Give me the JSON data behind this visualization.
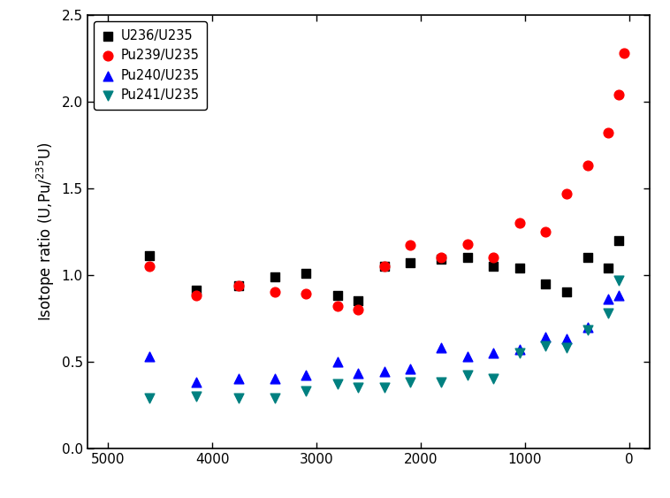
{
  "ylabel": "Isotope ratio (U,Pu/$^{235}$U)",
  "xlim": [
    5200,
    -200
  ],
  "ylim": [
    0.0,
    2.5
  ],
  "xticks": [
    5000,
    4000,
    3000,
    2000,
    1000,
    0
  ],
  "yticks": [
    0.0,
    0.5,
    1.0,
    1.5,
    2.0,
    2.5
  ],
  "U236_x": [
    4600,
    4150,
    3750,
    3400,
    3100,
    2800,
    2600,
    2350,
    2100,
    1800,
    1550,
    1300,
    1050,
    800,
    600,
    400,
    200,
    100
  ],
  "U236_y": [
    1.11,
    0.91,
    0.94,
    0.99,
    1.01,
    0.88,
    0.85,
    1.05,
    1.07,
    1.09,
    1.1,
    1.05,
    1.04,
    0.95,
    0.9,
    1.1,
    1.04,
    1.2
  ],
  "Pu239_x": [
    4600,
    4150,
    3750,
    3400,
    3100,
    2800,
    2600,
    2350,
    2100,
    1800,
    1550,
    1300,
    1050,
    800,
    600,
    400,
    200,
    100,
    50
  ],
  "Pu239_y": [
    1.05,
    0.88,
    0.94,
    0.9,
    0.89,
    0.82,
    0.8,
    1.05,
    1.17,
    1.1,
    1.18,
    1.1,
    1.3,
    1.25,
    1.47,
    1.63,
    1.82,
    2.04,
    2.28
  ],
  "Pu240_x": [
    4600,
    4150,
    3750,
    3400,
    3100,
    2800,
    2600,
    2350,
    2100,
    1800,
    1550,
    1300,
    1050,
    800,
    600,
    400,
    200,
    100
  ],
  "Pu240_y": [
    0.53,
    0.38,
    0.4,
    0.4,
    0.42,
    0.5,
    0.43,
    0.44,
    0.46,
    0.58,
    0.53,
    0.55,
    0.57,
    0.64,
    0.63,
    0.7,
    0.86,
    0.88
  ],
  "Pu241_x": [
    4600,
    4150,
    3750,
    3400,
    3100,
    2800,
    2600,
    2350,
    2100,
    1800,
    1550,
    1300,
    1050,
    800,
    600,
    400,
    200,
    100
  ],
  "Pu241_y": [
    0.29,
    0.3,
    0.29,
    0.29,
    0.33,
    0.37,
    0.35,
    0.35,
    0.38,
    0.38,
    0.42,
    0.4,
    0.55,
    0.59,
    0.58,
    0.68,
    0.78,
    0.97
  ],
  "colors": {
    "U236": "#000000",
    "Pu239": "#ff0000",
    "Pu240": "#0000ff",
    "Pu241": "#008080"
  },
  "legend_labels": [
    "U236/U235",
    "Pu239/U235",
    "Pu240/U235",
    "Pu241/U235"
  ],
  "marker_size": 48,
  "legend_fontsize": 10.5,
  "tick_labelsize": 11,
  "ylabel_fontsize": 12
}
